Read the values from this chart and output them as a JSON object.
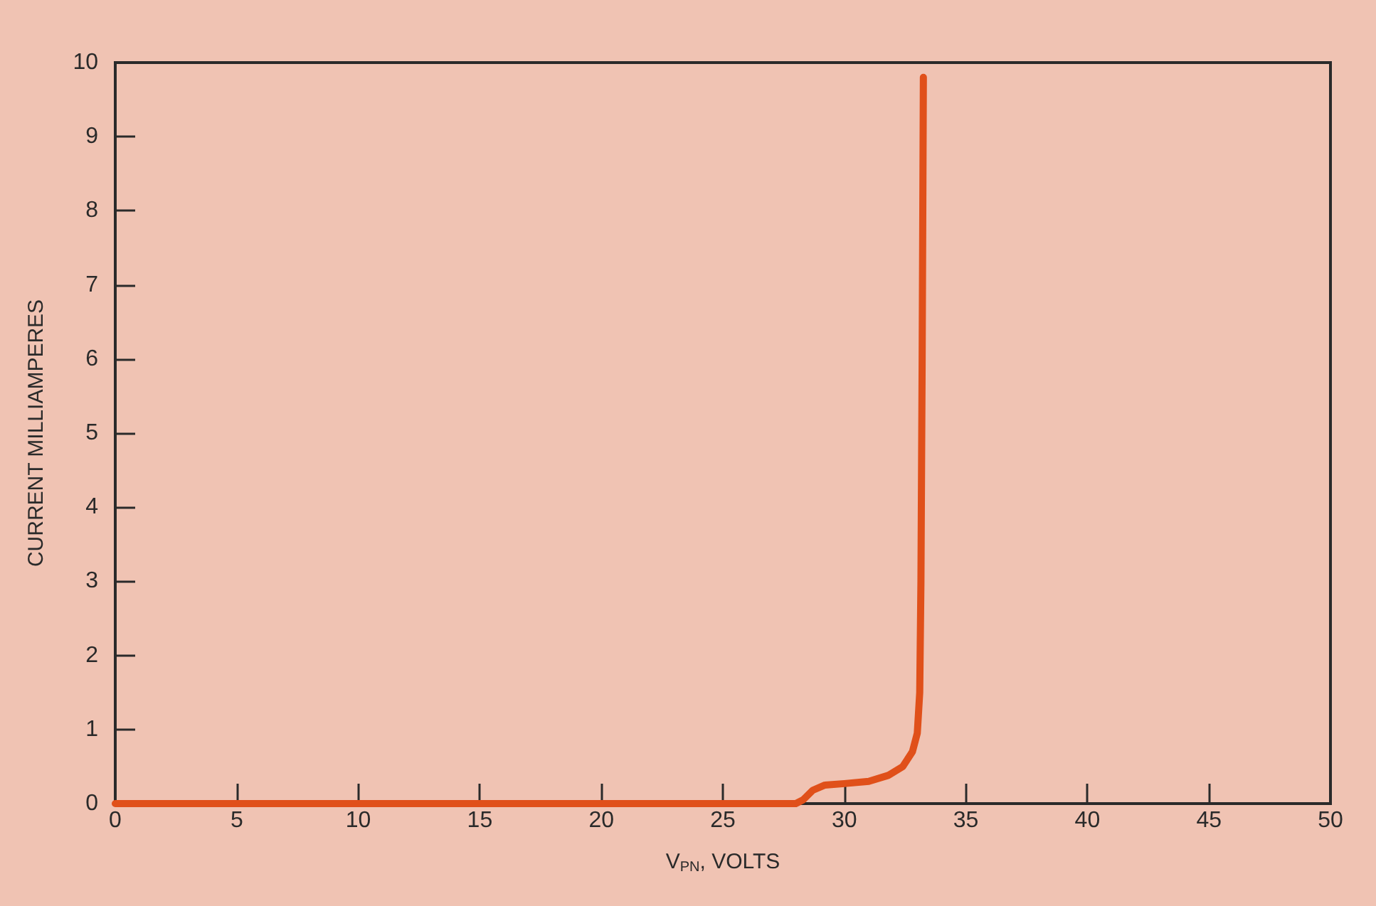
{
  "chart_data": {
    "type": "line",
    "xlabel": "V$_{PN}$, VOLTS",
    "ylabel": "CURRENT MILLIAMPERES",
    "x": [
      0,
      5,
      10,
      15,
      20,
      25,
      28,
      28.3,
      28.7,
      29.2,
      30,
      31,
      31.8,
      32.4,
      32.8,
      33.0,
      33.1,
      33.15,
      33.2,
      33.25
    ],
    "series": [
      {
        "color": "#e0501a",
        "values": [
          0,
          0,
          0,
          0,
          0,
          0,
          0,
          0.05,
          0.18,
          0.25,
          0.27,
          0.3,
          0.38,
          0.5,
          0.7,
          0.95,
          1.5,
          3,
          6,
          9.8
        ]
      }
    ],
    "xlim": [
      0,
      50
    ],
    "xticks": [
      0,
      5,
      10,
      15,
      20,
      25,
      30,
      35,
      40,
      45,
      50
    ],
    "ylim": [
      0,
      10
    ],
    "yticks": [
      0,
      1,
      2,
      3,
      4,
      5,
      6,
      7,
      8,
      9,
      10
    ],
    "grid": false,
    "marker": "none",
    "line_style": "solid"
  }
}
